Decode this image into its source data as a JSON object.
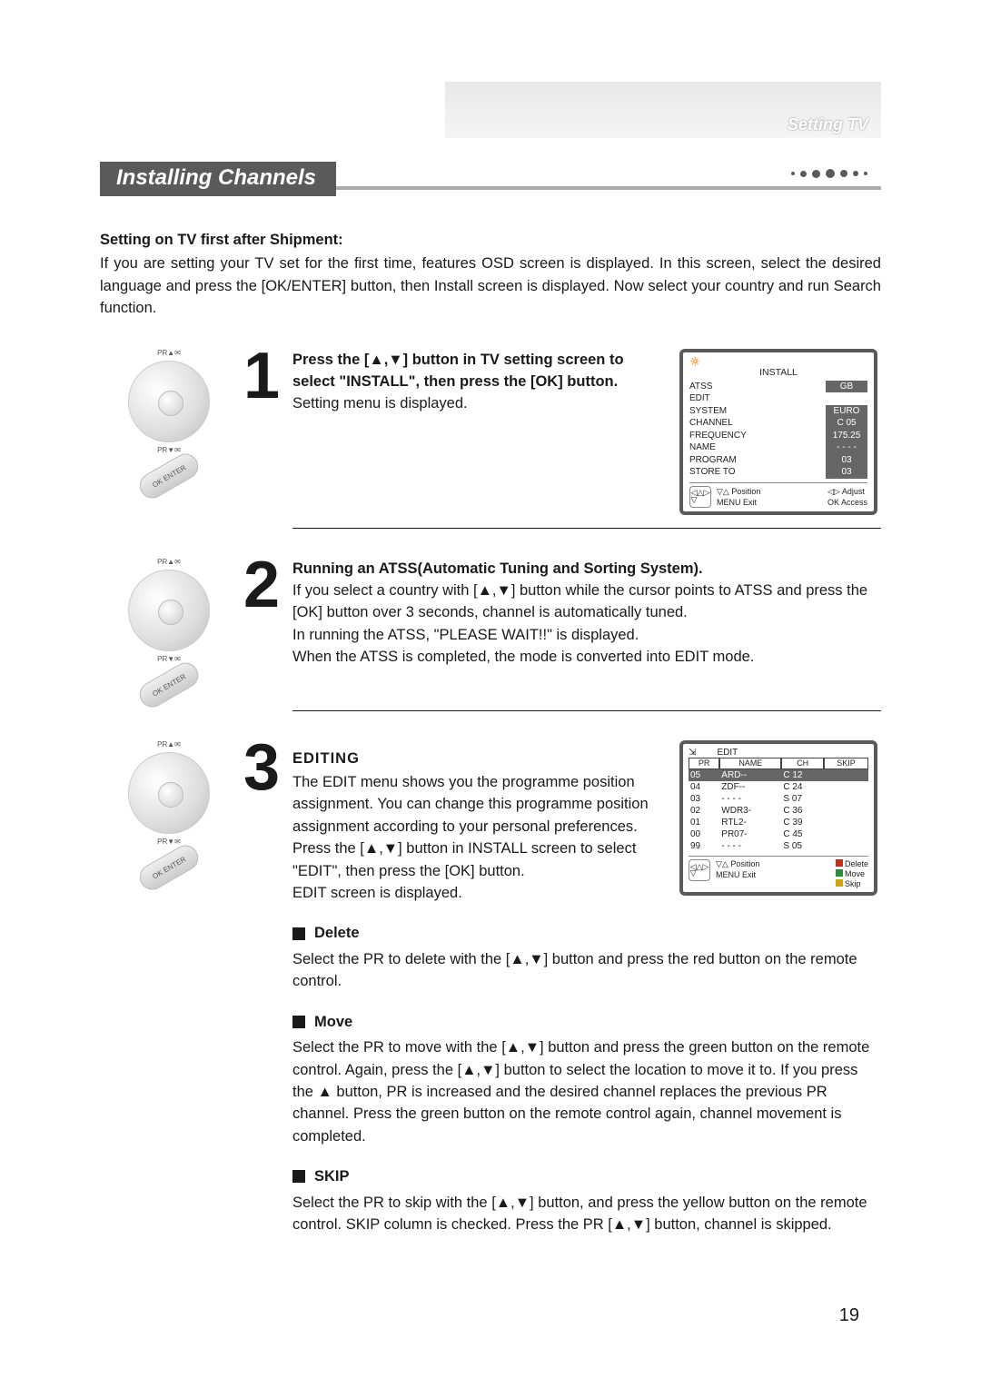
{
  "header": {
    "section": "Setting TV"
  },
  "title": "Installing Channels",
  "intro": {
    "heading": "Setting on TV first after Shipment:",
    "body": "If you are setting your TV set for the first time, features OSD screen is displayed. In this screen, select the desired language and press the [OK/ENTER] button, then Install screen is displayed. Now select your country and run Search function."
  },
  "step1": {
    "number": "1",
    "heading": "Press the [▲,▼] button in TV setting screen to select \"INSTALL\", then press the [OK] button.",
    "body": "Setting menu is displayed."
  },
  "osd_install": {
    "title": "INSTALL",
    "rows": [
      {
        "k": "ATSS",
        "v": "GB"
      },
      {
        "k": "EDIT",
        "v": ""
      },
      {
        "k": "SYSTEM",
        "v": "EURO"
      },
      {
        "k": "CHANNEL",
        "v": "C 05"
      },
      {
        "k": "FREQUENCY",
        "v": "175.25"
      },
      {
        "k": "NAME",
        "v": "- - - -"
      },
      {
        "k": "PROGRAM",
        "v": "03"
      },
      {
        "k": "STORE TO",
        "v": "03"
      }
    ],
    "foot": {
      "pos": "▽△  Position",
      "adj": "◁▷  Adjust",
      "menu": "MENU Exit",
      "ok": "OK  Access"
    }
  },
  "step2": {
    "number": "2",
    "heading": "Running an ATSS(Automatic Tuning and Sorting System).",
    "body1": "If you select a country with [▲,▼] button while the cursor points to ATSS and press the [OK] button over 3 seconds, channel is automatically tuned.",
    "body2": "In running the ATSS, \"PLEASE WAIT!!\" is displayed.",
    "body3": "When the ATSS is completed, the mode is converted into EDIT mode."
  },
  "step3": {
    "number": "3",
    "heading": "EDITING",
    "body1": "The EDIT menu shows you the programme position assignment. You can change this programme position assignment according to your personal preferences.",
    "body2": "Press the [▲,▼]  button in INSTALL screen to select \"EDIT\", then press the [OK] button.",
    "body3": "EDIT screen is displayed."
  },
  "osd_edit": {
    "title": "EDIT",
    "cols": [
      "PR",
      "NAME",
      "CH",
      "SKIP"
    ],
    "rows": [
      [
        "05",
        "ARD--",
        "C 12",
        ""
      ],
      [
        "04",
        "ZDF--",
        "C 24",
        ""
      ],
      [
        "03",
        "- - - -",
        "S 07",
        ""
      ],
      [
        "02",
        "WDR3-",
        "C 36",
        ""
      ],
      [
        "01",
        "RTL2-",
        "C 39",
        ""
      ],
      [
        "00",
        "PR07-",
        "C 45",
        ""
      ],
      [
        "99",
        "- - - -",
        "S 05",
        ""
      ]
    ],
    "selected_index": 0,
    "foot": {
      "pos": "▽△  Position",
      "menu": "MENU Exit",
      "legend": [
        {
          "color": "#c03020",
          "label": "Delete"
        },
        {
          "color": "#2f8a3a",
          "label": "Move"
        },
        {
          "color": "#c9a514",
          "label": "Skip"
        }
      ]
    }
  },
  "delete": {
    "title": "Delete",
    "body": "Select the PR to delete with the [▲,▼] button and press the red button on the remote control."
  },
  "move": {
    "title": "Move",
    "body": "Select the PR to move with the [▲,▼] button and press the green button on the remote control. Again, press the [▲,▼] button to select the location to move it to. If you press the ▲ button, PR is increased and the desired channel replaces the previous PR channel. Press the green button on the remote control again, channel movement is completed."
  },
  "skip": {
    "title": "SKIP",
    "body": "Select the PR to skip with the [▲,▼] button, and press the yellow button on the remote control. SKIP column is checked. Press the PR [▲,▼] button, channel is skipped."
  },
  "page_number": "19",
  "remote": {
    "pr_up": "PR▲✉",
    "pr_dn": "PR▼✉",
    "ok": "OK ENTER"
  },
  "colors": {
    "title_bg": "#5a5a5a",
    "text": "#1a1a1a",
    "rule": "#1a1a1a",
    "osd_border": "#5a5a5a",
    "osd_highlight": "#666666",
    "red": "#c03020",
    "green": "#2f8a3a",
    "yellow": "#c9a514"
  }
}
